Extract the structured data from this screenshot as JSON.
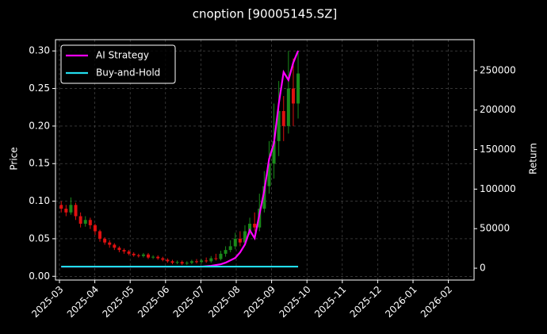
{
  "chart_data": {
    "type": "candlestick",
    "title": "cnoption [90005145.SZ]",
    "ylabel": "Price",
    "y2label": "Return",
    "xticks": [
      "2025-03",
      "2025-04",
      "2025-05",
      "2025-06",
      "2025-07",
      "2025-08",
      "2025-09",
      "2025-10",
      "2025-11",
      "2025-12",
      "2026-01",
      "2026-02"
    ],
    "ylim": [
      -0.005,
      0.315
    ],
    "yticks": [
      {
        "value": 0,
        "label": "0.00"
      },
      {
        "value": 0.05,
        "label": "0.05"
      },
      {
        "value": 0.1,
        "label": "0.10"
      },
      {
        "value": 0.15,
        "label": "0.15"
      },
      {
        "value": 0.2,
        "label": "0.20"
      },
      {
        "value": 0.25,
        "label": "0.25"
      },
      {
        "value": 0.3,
        "label": "0.30"
      }
    ],
    "y2lim": [
      -15000,
      289000
    ],
    "y2ticks": [
      0,
      50000,
      100000,
      150000,
      200000,
      250000
    ],
    "grid": true,
    "legend": "upper left",
    "up_color": "#1a8a1a",
    "down_color": "#e01010",
    "candles": {
      "open": [
        0.095,
        0.09,
        0.085,
        0.095,
        0.08,
        0.07,
        0.075,
        0.068,
        0.06,
        0.05,
        0.045,
        0.042,
        0.038,
        0.035,
        0.033,
        0.03,
        0.028,
        0.027,
        0.029,
        0.025,
        0.026,
        0.024,
        0.022,
        0.02,
        0.018,
        0.019,
        0.017,
        0.018,
        0.02,
        0.019,
        0.021,
        0.02,
        0.024,
        0.023,
        0.03,
        0.035,
        0.04,
        0.05,
        0.045,
        0.06,
        0.07,
        0.065,
        0.09,
        0.12,
        0.15,
        0.18,
        0.22,
        0.2,
        0.25,
        0.23
      ],
      "high": [
        0.1,
        0.095,
        0.105,
        0.098,
        0.085,
        0.08,
        0.078,
        0.07,
        0.062,
        0.052,
        0.048,
        0.044,
        0.04,
        0.037,
        0.035,
        0.032,
        0.03,
        0.031,
        0.031,
        0.028,
        0.028,
        0.026,
        0.024,
        0.022,
        0.021,
        0.021,
        0.02,
        0.022,
        0.023,
        0.023,
        0.025,
        0.027,
        0.03,
        0.034,
        0.04,
        0.048,
        0.058,
        0.06,
        0.068,
        0.078,
        0.085,
        0.11,
        0.14,
        0.18,
        0.23,
        0.26,
        0.24,
        0.3,
        0.29,
        0.3
      ],
      "low": [
        0.085,
        0.08,
        0.082,
        0.075,
        0.065,
        0.066,
        0.063,
        0.055,
        0.046,
        0.042,
        0.038,
        0.035,
        0.032,
        0.03,
        0.028,
        0.026,
        0.025,
        0.025,
        0.023,
        0.023,
        0.022,
        0.02,
        0.018,
        0.016,
        0.016,
        0.015,
        0.015,
        0.016,
        0.017,
        0.017,
        0.018,
        0.018,
        0.021,
        0.021,
        0.026,
        0.032,
        0.036,
        0.04,
        0.042,
        0.055,
        0.06,
        0.06,
        0.085,
        0.11,
        0.13,
        0.16,
        0.18,
        0.19,
        0.2,
        0.21
      ],
      "close": [
        0.09,
        0.085,
        0.095,
        0.08,
        0.07,
        0.075,
        0.068,
        0.06,
        0.05,
        0.045,
        0.042,
        0.038,
        0.035,
        0.033,
        0.03,
        0.028,
        0.027,
        0.029,
        0.025,
        0.026,
        0.024,
        0.022,
        0.02,
        0.018,
        0.019,
        0.017,
        0.018,
        0.02,
        0.019,
        0.021,
        0.02,
        0.024,
        0.023,
        0.03,
        0.035,
        0.04,
        0.05,
        0.045,
        0.06,
        0.07,
        0.065,
        0.09,
        0.12,
        0.15,
        0.18,
        0.22,
        0.2,
        0.25,
        0.23,
        0.27
      ]
    },
    "series": [
      {
        "name": "AI Strategy",
        "color": "#ff00ff",
        "axis": "y2",
        "values": [
          2000,
          2000,
          2000,
          2000,
          2000,
          2000,
          2000,
          2000,
          2000,
          2000,
          2000,
          2000,
          2000,
          2000,
          2000,
          2000,
          2000,
          2000,
          2000,
          2000,
          2000,
          2000,
          2000,
          2000,
          2000,
          2000,
          2000,
          2000,
          2000,
          2000,
          2500,
          3000,
          4000,
          5000,
          7000,
          10000,
          13000,
          20000,
          30000,
          48000,
          38000,
          68000,
          98000,
          138000,
          158000,
          208000,
          248000,
          238000,
          260000,
          275000
        ]
      },
      {
        "name": "Buy-and-Hold",
        "color": "#22ddee",
        "axis": "y2",
        "values": [
          2000,
          2000,
          2000,
          2000,
          2000,
          2000,
          2000,
          2000,
          2000,
          2000,
          2000,
          2000,
          2000,
          2000,
          2000,
          2000,
          2000,
          2000,
          2000,
          2000,
          2000,
          2000,
          2000,
          2000,
          2000,
          2000,
          2000,
          2000,
          2000,
          2000,
          2000,
          2000,
          2000,
          2000,
          2000,
          2000,
          2000,
          2000,
          2000,
          2000,
          2000,
          2000,
          2000,
          2000,
          2000,
          2000,
          2000,
          2000,
          2000,
          2000
        ]
      }
    ]
  }
}
